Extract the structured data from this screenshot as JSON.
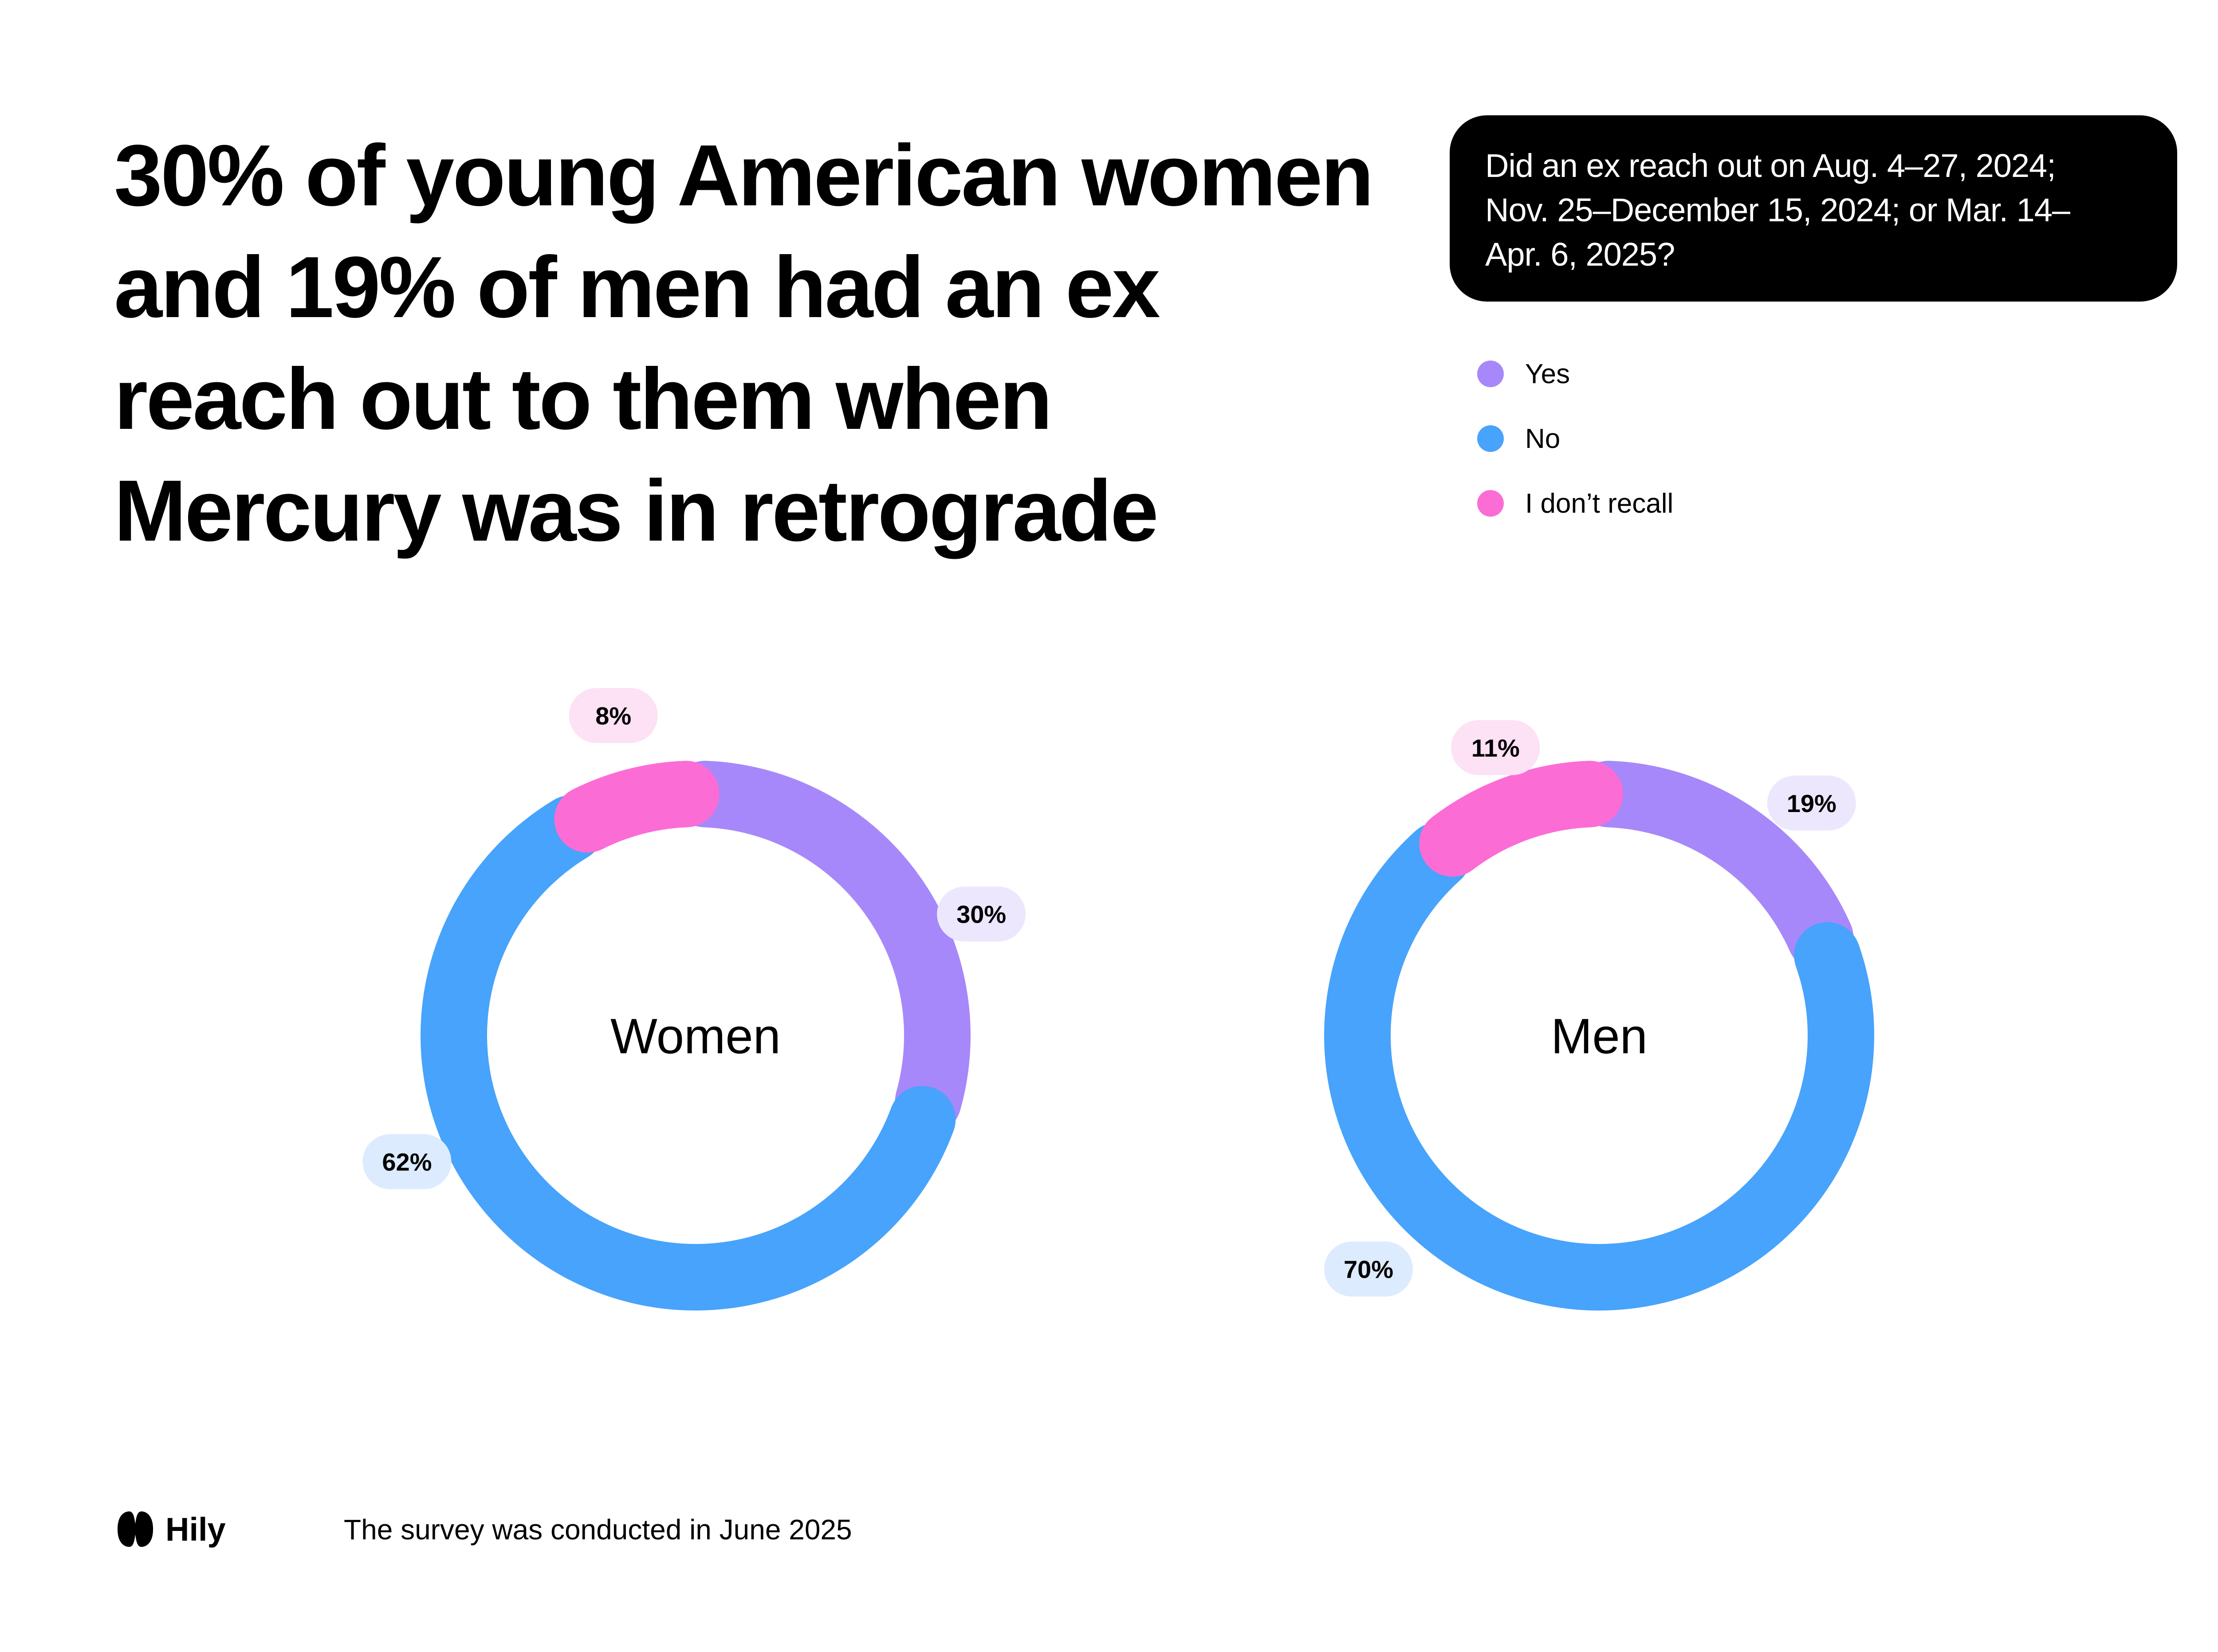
{
  "headline": {
    "line1": "30% of young American women",
    "line2": "and 19% of men had an ex",
    "line3": "reach out to them when",
    "line4": "Mercury was in retrograde"
  },
  "question": {
    "line1": "Did an ex reach out on Aug. 4–27, 2024;",
    "line2": "Nov. 25–December 15, 2024; or Mar. 14–",
    "line3": "Apr. 6, 2025?"
  },
  "legend": [
    {
      "label": "Yes",
      "color": "#A688FA"
    },
    {
      "label": "No",
      "color": "#47A3FB"
    },
    {
      "label": "I don’t recall",
      "color": "#FC6CD5"
    }
  ],
  "chart_data": [
    {
      "type": "pie",
      "center_label": "Women",
      "categories": [
        "Yes",
        "No",
        "I don’t recall"
      ],
      "values": [
        30,
        62,
        8
      ],
      "data_labels": [
        "30%",
        "62%",
        "8%"
      ],
      "colors": [
        "#A688FA",
        "#47A3FB",
        "#FC6CD5"
      ],
      "label_bg": [
        "#EDE7FE",
        "#DCEBFE",
        "#FDE1F5"
      ]
    },
    {
      "type": "pie",
      "center_label": "Men",
      "categories": [
        "Yes",
        "No",
        "I don’t recall"
      ],
      "values": [
        19,
        70,
        11
      ],
      "data_labels": [
        "19%",
        "70%",
        "11%"
      ],
      "colors": [
        "#A688FA",
        "#47A3FB",
        "#FC6CD5"
      ],
      "label_bg": [
        "#EDE7FE",
        "#DCEBFE",
        "#FDE1F5"
      ]
    }
  ],
  "footer": {
    "brand": "Hily",
    "note": "The survey was conducted in June 2025"
  }
}
